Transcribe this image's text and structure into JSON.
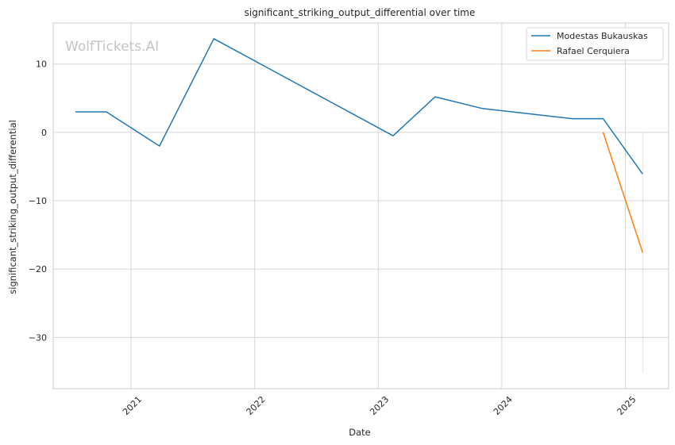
{
  "chart_data": {
    "type": "line",
    "title": "significant_striking_output_differential over time",
    "xlabel": "Date",
    "ylabel": "significant_striking_output_differential",
    "watermark": "WolfTickets.AI",
    "x_ticks": [
      "2021",
      "2022",
      "2023",
      "2024",
      "2025"
    ],
    "y_ticks": [
      "10",
      "0",
      "−10",
      "−20",
      "−30"
    ],
    "x_tick_values": [
      2021,
      2022,
      2023,
      2024,
      2025
    ],
    "y_tick_values": [
      10,
      0,
      -10,
      -20,
      -30
    ],
    "xlim": [
      2020.37,
      2025.35
    ],
    "ylim": [
      -37.5,
      16.0
    ],
    "grid": true,
    "legend_position": "top-right",
    "series": [
      {
        "name": "Modestas Bukauskas",
        "color": "#1f77b4",
        "x": [
          2020.55,
          2020.8,
          2021.23,
          2021.67,
          2023.12,
          2023.46,
          2023.84,
          2024.57,
          2024.82,
          2025.14
        ],
        "y": [
          3.0,
          3.0,
          -2.0,
          13.7,
          -0.5,
          5.2,
          3.5,
          2.0,
          2.0,
          -6.1
        ]
      },
      {
        "name": "Rafael Cerquiera",
        "color": "#ff7f0e",
        "x": [
          2024.82,
          2025.14
        ],
        "y": [
          0.0,
          -17.6
        ],
        "band": {
          "x": 2025.14,
          "y_low": -35.2,
          "y_high": 0.0
        }
      }
    ]
  }
}
